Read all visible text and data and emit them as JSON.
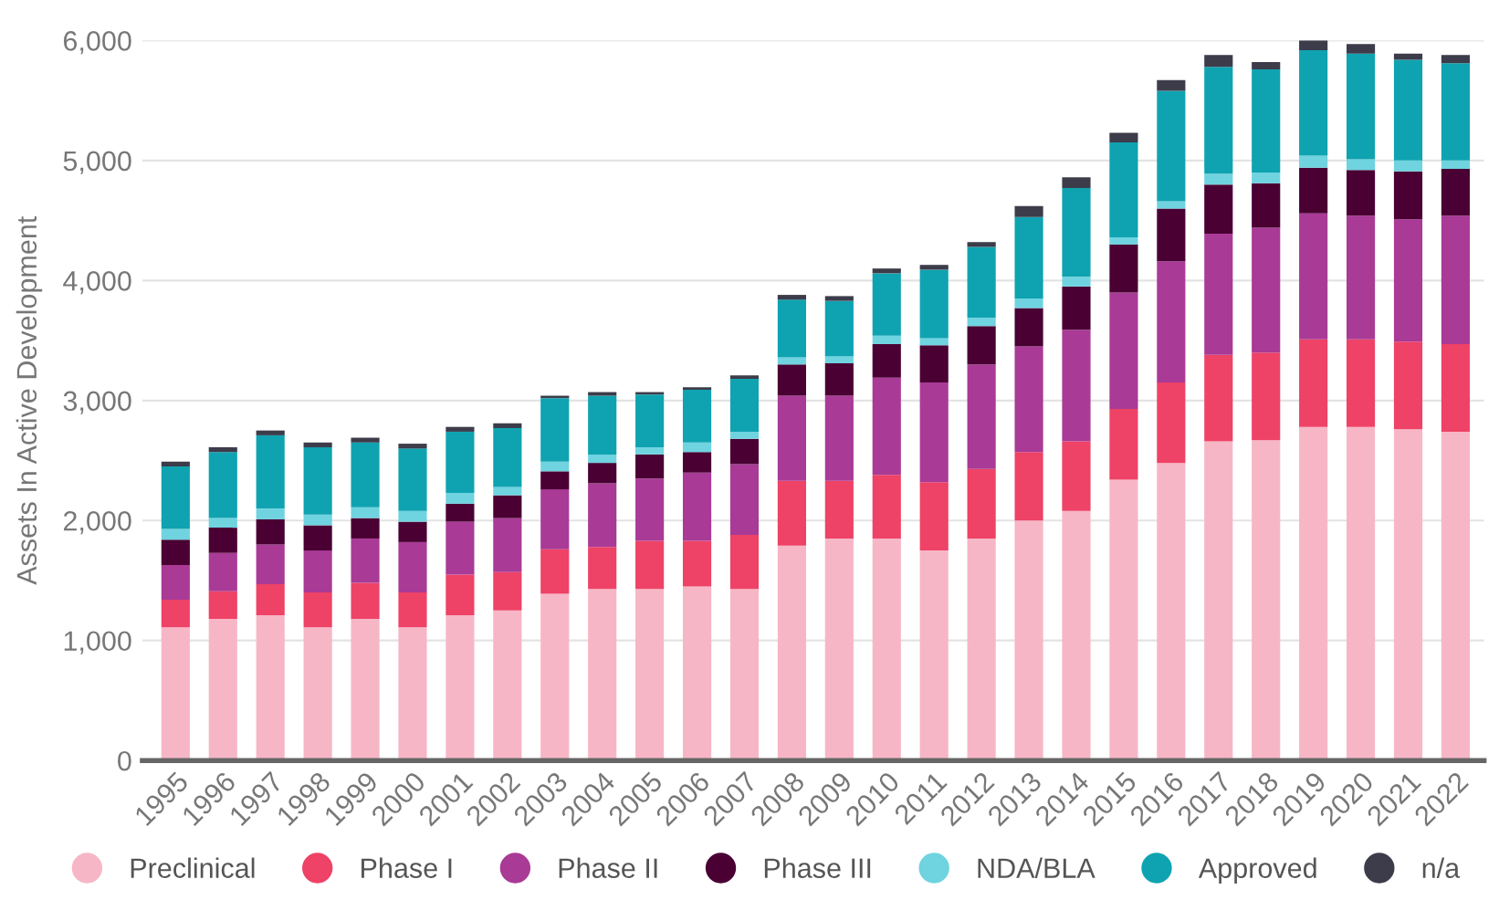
{
  "chart_data": {
    "type": "bar",
    "stacked": true,
    "ylabel": "Assets In Active Development",
    "categories": [
      "1995",
      "1996",
      "1997",
      "1998",
      "1999",
      "2000",
      "2001",
      "2002",
      "2003",
      "2004",
      "2005",
      "2006",
      "2007",
      "2008",
      "2009",
      "2010",
      "2011",
      "2012",
      "2013",
      "2014",
      "2015",
      "2016",
      "2017",
      "2018",
      "2019",
      "2020",
      "2021",
      "2022"
    ],
    "series": [
      {
        "name": "Preclinical",
        "color": "#f7b6c6",
        "values": [
          1110,
          1180,
          1210,
          1110,
          1180,
          1110,
          1210,
          1250,
          1390,
          1430,
          1430,
          1450,
          1430,
          1790,
          1850,
          1850,
          1750,
          1850,
          2000,
          2080,
          2340,
          2480,
          2660,
          2670,
          2780,
          2780,
          2760,
          2740
        ]
      },
      {
        "name": "Phase I",
        "color": "#ee4266",
        "values": [
          230,
          230,
          260,
          290,
          300,
          290,
          340,
          320,
          370,
          350,
          400,
          380,
          450,
          540,
          480,
          530,
          570,
          580,
          570,
          580,
          590,
          670,
          720,
          730,
          730,
          730,
          730,
          730
        ]
      },
      {
        "name": "Phase II",
        "color": "#a93a96",
        "values": [
          290,
          320,
          330,
          350,
          370,
          420,
          440,
          450,
          500,
          530,
          520,
          570,
          590,
          710,
          710,
          810,
          830,
          870,
          880,
          930,
          970,
          1010,
          1010,
          1040,
          1050,
          1030,
          1020,
          1070
        ]
      },
      {
        "name": "Phase III",
        "color": "#4a0033",
        "values": [
          210,
          210,
          210,
          210,
          170,
          170,
          150,
          190,
          150,
          170,
          200,
          170,
          210,
          260,
          270,
          280,
          310,
          320,
          320,
          360,
          400,
          440,
          410,
          370,
          380,
          380,
          400,
          390
        ]
      },
      {
        "name": "NDA/BLA",
        "color": "#6fd3e0",
        "values": [
          90,
          80,
          90,
          90,
          90,
          90,
          90,
          70,
          80,
          70,
          60,
          80,
          60,
          60,
          60,
          70,
          60,
          70,
          80,
          80,
          60,
          60,
          90,
          90,
          100,
          90,
          90,
          70
        ]
      },
      {
        "name": "Approved",
        "color": "#0fa3b1",
        "values": [
          520,
          550,
          610,
          560,
          540,
          520,
          510,
          490,
          530,
          490,
          440,
          440,
          440,
          480,
          460,
          520,
          570,
          590,
          680,
          740,
          790,
          920,
          890,
          860,
          880,
          880,
          840,
          810
        ]
      },
      {
        "name": "n/a",
        "color": "#3c3c4a",
        "values": [
          40,
          40,
          40,
          40,
          40,
          40,
          40,
          40,
          20,
          30,
          20,
          20,
          30,
          40,
          40,
          40,
          40,
          40,
          90,
          90,
          80,
          90,
          100,
          60,
          80,
          80,
          50,
          70
        ]
      }
    ],
    "ylim": [
      0,
      6000
    ],
    "yticks": [
      {
        "value": 0,
        "label": "0"
      },
      {
        "value": 1000,
        "label": "1,000"
      },
      {
        "value": 2000,
        "label": "2,000"
      },
      {
        "value": 3000,
        "label": "3,000"
      },
      {
        "value": 4000,
        "label": "4,000"
      },
      {
        "value": 5000,
        "label": "5,000"
      },
      {
        "value": 6000,
        "label": "6,000"
      }
    ],
    "grid": "y",
    "legend": "bottom"
  }
}
